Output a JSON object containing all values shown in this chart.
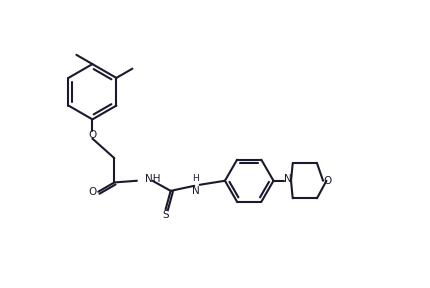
{
  "bg_color": "#ffffff",
  "line_color": "#1a1a2e",
  "line_width": 1.5,
  "font_size": 7.5,
  "figsize": [
    4.31,
    2.88
  ],
  "dpi": 100,
  "xlim": [
    -0.5,
    10.5
  ],
  "ylim": [
    -1.0,
    7.5
  ]
}
